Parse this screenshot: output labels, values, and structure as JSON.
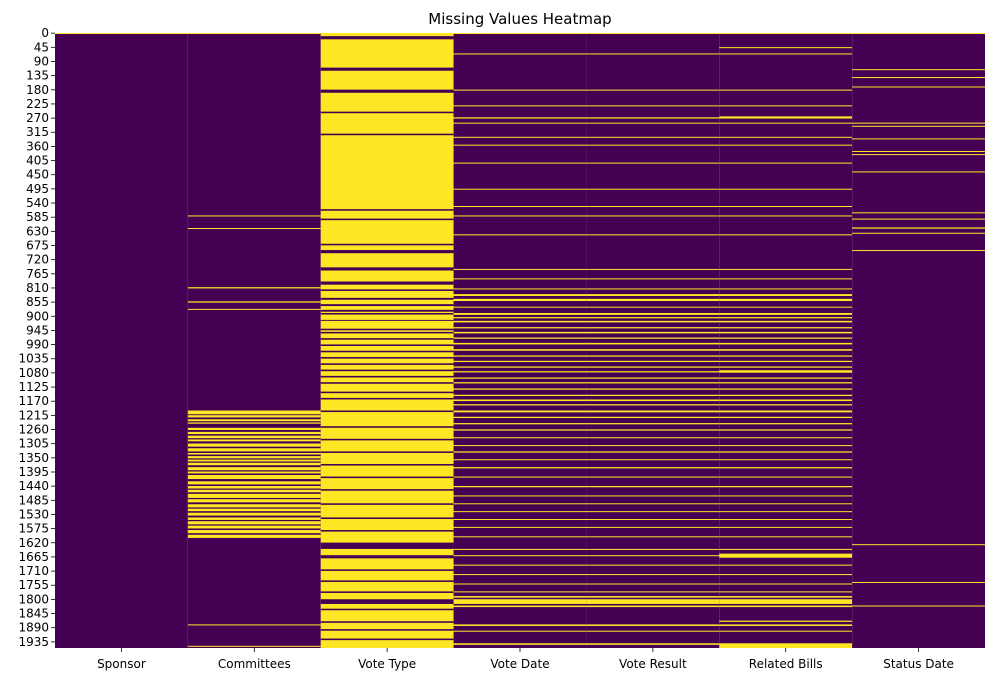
{
  "chart_data": {
    "type": "heatmap",
    "title": "Missing Values Heatmap",
    "xlabel": "",
    "ylabel": "",
    "columns": [
      "Sponsor",
      "Committees",
      "Vote Type",
      "Vote Date",
      "Vote Result",
      "Related Bills",
      "Status Date"
    ],
    "y_ticks": [
      0,
      45,
      90,
      135,
      180,
      225,
      270,
      315,
      360,
      405,
      450,
      495,
      540,
      585,
      630,
      675,
      720,
      765,
      810,
      855,
      900,
      945,
      990,
      1035,
      1080,
      1125,
      1170,
      1215,
      1260,
      1305,
      1350,
      1395,
      1440,
      1485,
      1530,
      1575,
      1620,
      1665,
      1710,
      1755,
      1800,
      1845,
      1890,
      1935
    ],
    "n_rows": 1955,
    "value_meaning": {
      "missing": 1,
      "present": 0
    },
    "colors": {
      "present": "#440154",
      "missing": "#fde725"
    },
    "colorbar": false,
    "missing_row_ranges": {
      "Sponsor": [
        [
          0,
          2
        ]
      ],
      "Committees": [
        [
          0,
          2
        ],
        [
          580,
          583
        ],
        [
          620,
          622
        ],
        [
          808,
          812
        ],
        [
          853,
          857
        ],
        [
          877,
          879
        ],
        [
          1200,
          1212
        ],
        [
          1215,
          1222
        ],
        [
          1228,
          1234
        ],
        [
          1238,
          1242
        ],
        [
          1255,
          1262
        ],
        [
          1268,
          1275
        ],
        [
          1280,
          1288
        ],
        [
          1292,
          1298
        ],
        [
          1305,
          1315
        ],
        [
          1320,
          1330
        ],
        [
          1335,
          1340
        ],
        [
          1345,
          1352
        ],
        [
          1356,
          1362
        ],
        [
          1366,
          1374
        ],
        [
          1380,
          1390
        ],
        [
          1394,
          1400
        ],
        [
          1405,
          1418
        ],
        [
          1425,
          1435
        ],
        [
          1440,
          1448
        ],
        [
          1452,
          1460
        ],
        [
          1465,
          1478
        ],
        [
          1482,
          1492
        ],
        [
          1498,
          1508
        ],
        [
          1512,
          1520
        ],
        [
          1525,
          1534
        ],
        [
          1540,
          1548
        ],
        [
          1552,
          1562
        ],
        [
          1566,
          1575
        ],
        [
          1580,
          1590
        ],
        [
          1595,
          1605
        ],
        [
          1880,
          1883
        ],
        [
          1948,
          1950
        ]
      ],
      "Vote Type": [
        [
          0,
          10
        ],
        [
          20,
          110
        ],
        [
          120,
          180
        ],
        [
          190,
          250
        ],
        [
          255,
          320
        ],
        [
          325,
          560
        ],
        [
          565,
          590
        ],
        [
          595,
          670
        ],
        [
          675,
          690
        ],
        [
          700,
          745
        ],
        [
          755,
          790
        ],
        [
          800,
          815
        ],
        [
          820,
          842
        ],
        [
          848,
          862
        ],
        [
          868,
          880
        ],
        [
          886,
          890
        ],
        [
          895,
          912
        ],
        [
          915,
          940
        ],
        [
          945,
          950
        ],
        [
          955,
          970
        ],
        [
          975,
          990
        ],
        [
          995,
          1010
        ],
        [
          1015,
          1030
        ],
        [
          1035,
          1050
        ],
        [
          1055,
          1070
        ],
        [
          1075,
          1090
        ],
        [
          1095,
          1110
        ],
        [
          1115,
          1140
        ],
        [
          1145,
          1160
        ],
        [
          1165,
          1200
        ],
        [
          1205,
          1250
        ],
        [
          1255,
          1290
        ],
        [
          1295,
          1330
        ],
        [
          1335,
          1370
        ],
        [
          1375,
          1410
        ],
        [
          1415,
          1450
        ],
        [
          1455,
          1495
        ],
        [
          1500,
          1540
        ],
        [
          1545,
          1580
        ],
        [
          1585,
          1620
        ],
        [
          1640,
          1660
        ],
        [
          1670,
          1705
        ],
        [
          1710,
          1740
        ],
        [
          1745,
          1775
        ],
        [
          1780,
          1800
        ],
        [
          1815,
          1830
        ],
        [
          1835,
          1870
        ],
        [
          1875,
          1895
        ],
        [
          1900,
          1925
        ],
        [
          1930,
          1955
        ]
      ],
      "Vote Date": [
        [
          0,
          2
        ],
        [
          65,
          67
        ],
        [
          180,
          182
        ],
        [
          230,
          232
        ],
        [
          268,
          272
        ],
        [
          285,
          287
        ],
        [
          330,
          332
        ],
        [
          355,
          357
        ],
        [
          412,
          414
        ],
        [
          495,
          497
        ],
        [
          550,
          552
        ],
        [
          580,
          582
        ],
        [
          640,
          642
        ],
        [
          750,
          752
        ],
        [
          780,
          782
        ],
        [
          812,
          814
        ],
        [
          830,
          836
        ],
        [
          845,
          852
        ],
        [
          870,
          872
        ],
        [
          890,
          896
        ],
        [
          903,
          907
        ],
        [
          915,
          920
        ],
        [
          935,
          939
        ],
        [
          950,
          955
        ],
        [
          968,
          972
        ],
        [
          985,
          990
        ],
        [
          1005,
          1010
        ],
        [
          1025,
          1029
        ],
        [
          1042,
          1046
        ],
        [
          1060,
          1064
        ],
        [
          1075,
          1079
        ],
        [
          1095,
          1099
        ],
        [
          1110,
          1114
        ],
        [
          1130,
          1134
        ],
        [
          1150,
          1154
        ],
        [
          1165,
          1170
        ],
        [
          1180,
          1184
        ],
        [
          1200,
          1206
        ],
        [
          1220,
          1224
        ],
        [
          1240,
          1244
        ],
        [
          1260,
          1264
        ],
        [
          1285,
          1288
        ],
        [
          1310,
          1313
        ],
        [
          1330,
          1334
        ],
        [
          1355,
          1358
        ],
        [
          1380,
          1384
        ],
        [
          1410,
          1413
        ],
        [
          1440,
          1444
        ],
        [
          1470,
          1473
        ],
        [
          1495,
          1498
        ],
        [
          1520,
          1523
        ],
        [
          1545,
          1548
        ],
        [
          1570,
          1573
        ],
        [
          1600,
          1603
        ],
        [
          1640,
          1643
        ],
        [
          1660,
          1663
        ],
        [
          1690,
          1693
        ],
        [
          1720,
          1723
        ],
        [
          1750,
          1753
        ],
        [
          1775,
          1778
        ],
        [
          1790,
          1795
        ],
        [
          1800,
          1815
        ],
        [
          1820,
          1825
        ],
        [
          1880,
          1885
        ],
        [
          1900,
          1903
        ],
        [
          1940,
          1945
        ]
      ],
      "Vote Result": [
        [
          0,
          2
        ],
        [
          65,
          67
        ],
        [
          180,
          182
        ],
        [
          230,
          232
        ],
        [
          268,
          272
        ],
        [
          285,
          287
        ],
        [
          330,
          332
        ],
        [
          355,
          357
        ],
        [
          412,
          414
        ],
        [
          495,
          497
        ],
        [
          550,
          552
        ],
        [
          580,
          582
        ],
        [
          640,
          642
        ],
        [
          750,
          752
        ],
        [
          780,
          782
        ],
        [
          812,
          814
        ],
        [
          830,
          836
        ],
        [
          845,
          852
        ],
        [
          870,
          872
        ],
        [
          890,
          896
        ],
        [
          903,
          907
        ],
        [
          915,
          920
        ],
        [
          935,
          939
        ],
        [
          950,
          955
        ],
        [
          968,
          972
        ],
        [
          985,
          990
        ],
        [
          1005,
          1010
        ],
        [
          1025,
          1029
        ],
        [
          1042,
          1046
        ],
        [
          1060,
          1064
        ],
        [
          1075,
          1079
        ],
        [
          1095,
          1099
        ],
        [
          1110,
          1114
        ],
        [
          1130,
          1134
        ],
        [
          1150,
          1154
        ],
        [
          1165,
          1170
        ],
        [
          1180,
          1184
        ],
        [
          1200,
          1206
        ],
        [
          1220,
          1224
        ],
        [
          1240,
          1244
        ],
        [
          1260,
          1264
        ],
        [
          1285,
          1288
        ],
        [
          1310,
          1313
        ],
        [
          1330,
          1334
        ],
        [
          1355,
          1358
        ],
        [
          1380,
          1384
        ],
        [
          1410,
          1413
        ],
        [
          1440,
          1444
        ],
        [
          1470,
          1473
        ],
        [
          1495,
          1498
        ],
        [
          1520,
          1523
        ],
        [
          1545,
          1548
        ],
        [
          1570,
          1573
        ],
        [
          1600,
          1603
        ],
        [
          1640,
          1643
        ],
        [
          1660,
          1663
        ],
        [
          1690,
          1693
        ],
        [
          1720,
          1723
        ],
        [
          1750,
          1753
        ],
        [
          1775,
          1778
        ],
        [
          1790,
          1795
        ],
        [
          1800,
          1815
        ],
        [
          1820,
          1825
        ],
        [
          1880,
          1885
        ],
        [
          1900,
          1903
        ],
        [
          1940,
          1945
        ]
      ],
      "Related Bills": [
        [
          0,
          2
        ],
        [
          45,
          48
        ],
        [
          65,
          67
        ],
        [
          180,
          182
        ],
        [
          230,
          232
        ],
        [
          265,
          272
        ],
        [
          285,
          287
        ],
        [
          330,
          332
        ],
        [
          355,
          357
        ],
        [
          412,
          414
        ],
        [
          495,
          497
        ],
        [
          550,
          552
        ],
        [
          580,
          582
        ],
        [
          640,
          642
        ],
        [
          750,
          752
        ],
        [
          780,
          782
        ],
        [
          812,
          814
        ],
        [
          830,
          836
        ],
        [
          845,
          852
        ],
        [
          870,
          872
        ],
        [
          890,
          896
        ],
        [
          903,
          907
        ],
        [
          915,
          920
        ],
        [
          935,
          939
        ],
        [
          950,
          955
        ],
        [
          968,
          972
        ],
        [
          985,
          990
        ],
        [
          1005,
          1010
        ],
        [
          1025,
          1029
        ],
        [
          1042,
          1046
        ],
        [
          1060,
          1064
        ],
        [
          1072,
          1080
        ],
        [
          1095,
          1099
        ],
        [
          1110,
          1114
        ],
        [
          1130,
          1134
        ],
        [
          1150,
          1154
        ],
        [
          1165,
          1170
        ],
        [
          1180,
          1184
        ],
        [
          1200,
          1206
        ],
        [
          1220,
          1224
        ],
        [
          1240,
          1244
        ],
        [
          1260,
          1264
        ],
        [
          1285,
          1288
        ],
        [
          1310,
          1313
        ],
        [
          1330,
          1334
        ],
        [
          1355,
          1358
        ],
        [
          1380,
          1384
        ],
        [
          1410,
          1413
        ],
        [
          1440,
          1444
        ],
        [
          1470,
          1473
        ],
        [
          1495,
          1498
        ],
        [
          1520,
          1523
        ],
        [
          1545,
          1548
        ],
        [
          1570,
          1573
        ],
        [
          1600,
          1603
        ],
        [
          1640,
          1643
        ],
        [
          1655,
          1668
        ],
        [
          1690,
          1693
        ],
        [
          1720,
          1723
        ],
        [
          1750,
          1753
        ],
        [
          1775,
          1778
        ],
        [
          1790,
          1795
        ],
        [
          1800,
          1815
        ],
        [
          1820,
          1825
        ],
        [
          1868,
          1872
        ],
        [
          1880,
          1885
        ],
        [
          1900,
          1903
        ],
        [
          1940,
          1955
        ]
      ],
      "Status Date": [
        [
          0,
          2
        ],
        [
          115,
          117
        ],
        [
          140,
          142
        ],
        [
          170,
          172
        ],
        [
          285,
          287
        ],
        [
          295,
          297
        ],
        [
          335,
          337
        ],
        [
          375,
          378
        ],
        [
          385,
          387
        ],
        [
          440,
          442
        ],
        [
          570,
          572
        ],
        [
          590,
          592
        ],
        [
          618,
          622
        ],
        [
          635,
          637
        ],
        [
          690,
          692
        ],
        [
          1625,
          1627
        ],
        [
          1745,
          1747
        ],
        [
          1820,
          1822
        ]
      ]
    }
  }
}
